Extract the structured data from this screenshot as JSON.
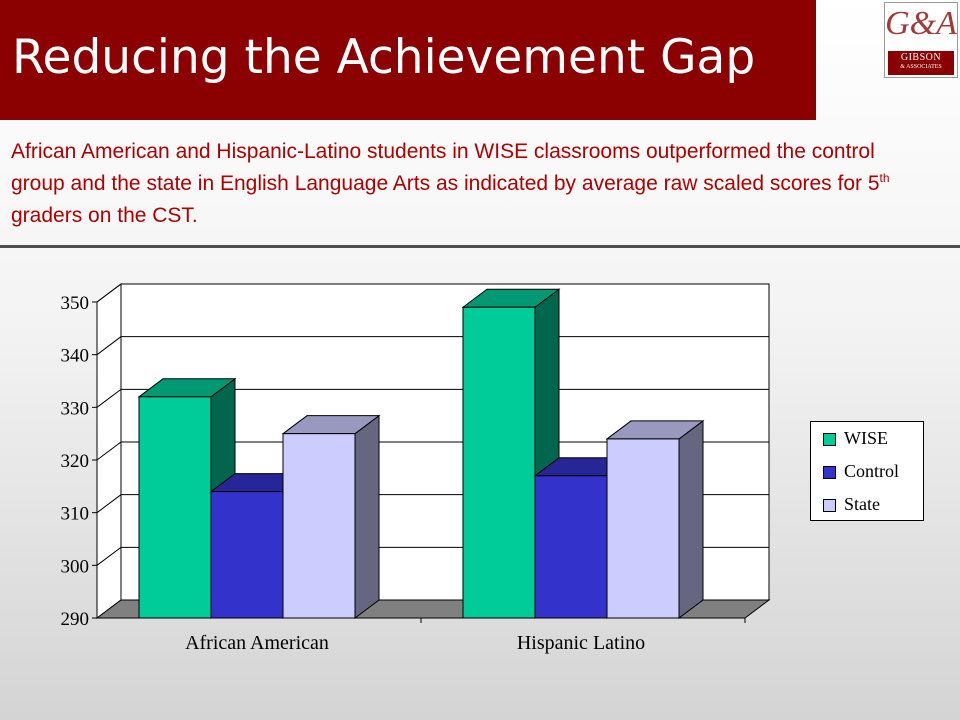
{
  "header": {
    "title": "Reducing the Achievement Gap"
  },
  "logo": {
    "mark": "G&A",
    "name": "GIBSON",
    "sub": "& ASSOCIATES"
  },
  "subtitle": {
    "before_sup": "African American and Hispanic-Latino students in WISE classrooms outperformed the control group and the state in English Language Arts as indicated by average raw scaled scores for  5",
    "sup": "th",
    "after_sup": " graders on the CST."
  },
  "chart_data": {
    "type": "bar",
    "style": "3d-clustered",
    "categories": [
      "African American",
      "Hispanic Latino"
    ],
    "series": [
      {
        "name": "WISE",
        "values": [
          332,
          349
        ],
        "color": "#00cc99"
      },
      {
        "name": "Control",
        "values": [
          314,
          317
        ],
        "color": "#3333cc"
      },
      {
        "name": "State",
        "values": [
          325,
          324
        ],
        "color": "#ccccff"
      }
    ],
    "ylim": [
      290,
      350
    ],
    "yticks": [
      "290",
      "300",
      "310",
      "320",
      "330",
      "340",
      "350"
    ],
    "grid": true,
    "legend_position": "right"
  }
}
